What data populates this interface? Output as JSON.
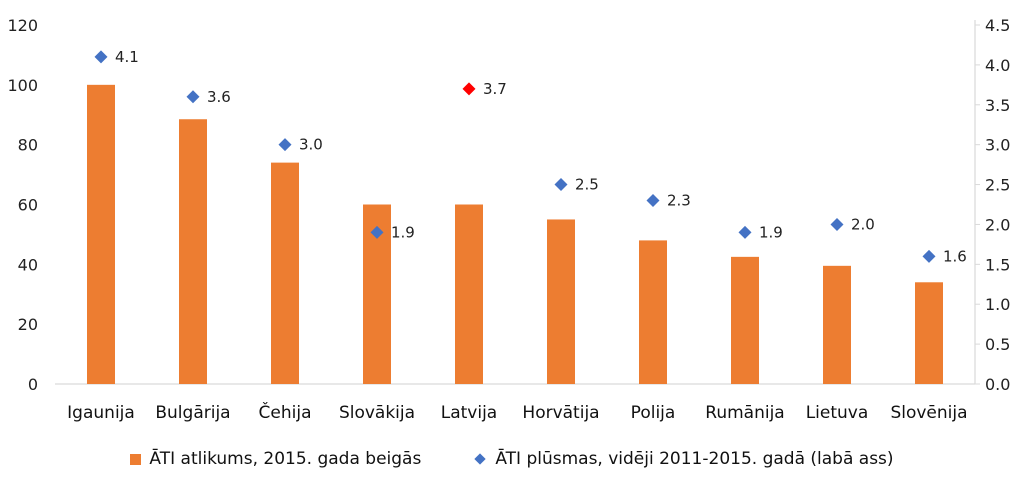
{
  "chart_data": {
    "type": "bar",
    "categories": [
      "Igaunija",
      "Bulgārija",
      "Čehija",
      "Slovākija",
      "Latvija",
      "Horvātija",
      "Polija",
      "Rumānija",
      "Lietuva",
      "Slovēnija"
    ],
    "series": [
      {
        "name": "ĀTI atlikums, 2015. gada beigās",
        "type": "bar",
        "axis": "left",
        "color": "#ED7D31",
        "values": [
          100,
          88.5,
          74,
          60,
          60,
          55,
          48,
          42.5,
          39.5,
          34
        ]
      },
      {
        "name": "ĀTI plūsmas, vidēji 2011-2015. gadā (labā ass)",
        "type": "scatter",
        "axis": "right",
        "color": "#4472C4",
        "highlight_color": "#FF0000",
        "highlight_category": "Latvija",
        "values": [
          4.1,
          3.6,
          3.0,
          1.9,
          3.7,
          2.5,
          2.3,
          1.9,
          2.0,
          1.6
        ],
        "labels": [
          "4.1",
          "3.6",
          "3.0",
          "1.9",
          "3.7",
          "2.5",
          "2.3",
          "1.9",
          "2.0",
          "1.6"
        ]
      }
    ],
    "ylim_left": [
      0,
      120
    ],
    "yticks_left": [
      "0",
      "20",
      "40",
      "60",
      "80",
      "100",
      "120"
    ],
    "ylim_right": [
      0,
      4.5
    ],
    "yticks_right": [
      "0.0",
      "0.5",
      "1.0",
      "1.5",
      "2.0",
      "2.5",
      "3.0",
      "3.5",
      "4.0",
      "4.5"
    ],
    "grid": false,
    "legend_position": "bottom"
  }
}
